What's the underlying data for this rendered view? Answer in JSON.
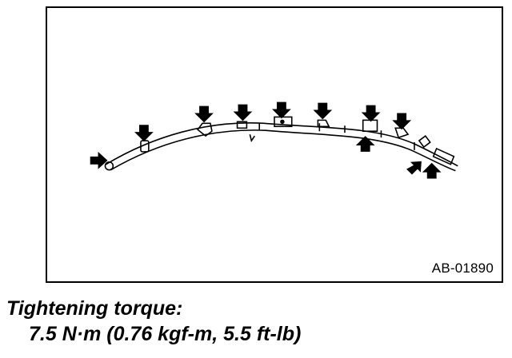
{
  "figure": {
    "id": "AB-01890",
    "arrow_icon": "down-arrow-icon",
    "clip_icon": "clip-icon"
  },
  "caption": {
    "label": "Tightening torque:",
    "value": "7.5 N·m (0.76 kgf-m, 5.5 ft-lb)"
  },
  "colors": {
    "ink": "#000000",
    "paper": "#ffffff"
  }
}
